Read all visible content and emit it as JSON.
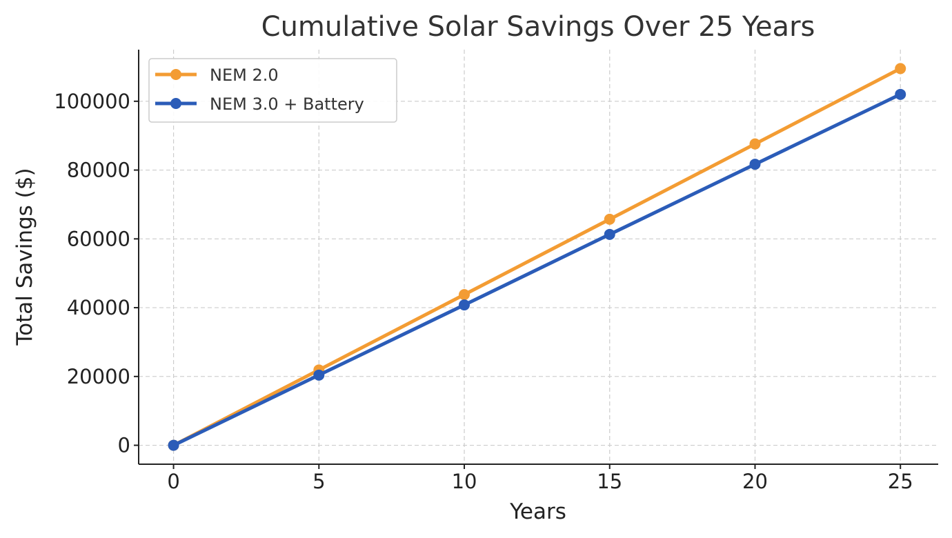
{
  "chart_data": {
    "type": "line",
    "title": "Cumulative Solar Savings Over 25 Years",
    "xlabel": "Years",
    "ylabel": "Total Savings ($)",
    "x": [
      0,
      5,
      10,
      15,
      20,
      25
    ],
    "xlim": [
      -1.2,
      26.3
    ],
    "ylim": [
      -5500,
      115000
    ],
    "xticks": [
      0,
      5,
      10,
      15,
      20,
      25
    ],
    "yticks": [
      0,
      20000,
      40000,
      60000,
      80000,
      100000
    ],
    "grid": true,
    "legend_position": "top-left",
    "series": [
      {
        "name": "NEM 2.0",
        "color": "#f39c33",
        "values": [
          0,
          21900,
          43800,
          65700,
          87600,
          109500
        ]
      },
      {
        "name": "NEM 3.0 + Battery",
        "color": "#2b5cb8",
        "values": [
          0,
          20400,
          40800,
          61300,
          81700,
          102000
        ]
      }
    ]
  }
}
